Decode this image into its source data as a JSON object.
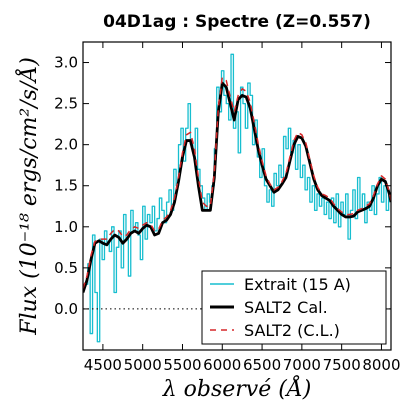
{
  "chart_data": {
    "type": "line",
    "title": "04D1ag : Spectre (Z=0.557)",
    "xlabel": "λ observé (Å)",
    "ylabel": "Flux (10⁻¹⁸ ergs/cm²/s/Å)",
    "xlim": [
      4250,
      8120
    ],
    "ylim": [
      -0.5,
      3.25
    ],
    "xticks": [
      4500,
      5000,
      5500,
      6000,
      6500,
      7000,
      7500,
      8000
    ],
    "xtick_labels": [
      "4500",
      "5000",
      "5500",
      "6000",
      "6500",
      "7000",
      "7500",
      "8000"
    ],
    "yticks": [
      0.0,
      0.5,
      1.0,
      1.5,
      2.0,
      2.5,
      3.0
    ],
    "ytick_labels": [
      "0.0",
      "0.5",
      "1.0",
      "1.5",
      "2.0",
      "2.5",
      "3.0"
    ],
    "zero_line": true,
    "grid": false,
    "legend_position": "lower-right",
    "series": [
      {
        "name": "Extrait (15 A)",
        "style": "step",
        "color": "#17becf",
        "x": [
          4280,
          4310,
          4340,
          4370,
          4400,
          4430,
          4460,
          4490,
          4520,
          4550,
          4580,
          4610,
          4640,
          4670,
          4700,
          4730,
          4760,
          4790,
          4820,
          4850,
          4880,
          4910,
          4940,
          4970,
          5000,
          5030,
          5060,
          5090,
          5120,
          5150,
          5180,
          5210,
          5240,
          5270,
          5300,
          5330,
          5360,
          5390,
          5420,
          5450,
          5480,
          5510,
          5540,
          5570,
          5600,
          5630,
          5660,
          5690,
          5720,
          5750,
          5780,
          5810,
          5840,
          5870,
          5900,
          5930,
          5960,
          5990,
          6020,
          6050,
          6080,
          6110,
          6140,
          6170,
          6200,
          6230,
          6260,
          6290,
          6320,
          6350,
          6380,
          6410,
          6440,
          6470,
          6500,
          6530,
          6560,
          6590,
          6620,
          6650,
          6680,
          6710,
          6740,
          6770,
          6800,
          6830,
          6860,
          6890,
          6920,
          6950,
          6980,
          7010,
          7040,
          7070,
          7100,
          7130,
          7160,
          7190,
          7220,
          7250,
          7280,
          7310,
          7340,
          7370,
          7400,
          7430,
          7460,
          7490,
          7520,
          7550,
          7580,
          7610,
          7640,
          7670,
          7700,
          7730,
          7760,
          7790,
          7820,
          7850,
          7880,
          7910,
          7940,
          7970,
          8000,
          8030,
          8060,
          8090
        ],
        "y": [
          0.3,
          0.55,
          -0.3,
          0.9,
          0.2,
          -0.4,
          0.85,
          0.6,
          0.95,
          0.8,
          0.7,
          1.0,
          0.2,
          0.75,
          0.95,
          0.5,
          1.15,
          0.85,
          0.4,
          1.2,
          0.95,
          1.05,
          0.9,
          0.6,
          1.25,
          0.85,
          1.15,
          1.05,
          1.25,
          0.95,
          1.1,
          1.35,
          1.2,
          1.05,
          1.3,
          1.45,
          1.2,
          1.7,
          1.5,
          2.0,
          2.2,
          1.8,
          2.2,
          2.5,
          2.0,
          1.9,
          2.2,
          1.7,
          1.5,
          1.35,
          1.2,
          1.4,
          1.3,
          1.5,
          1.95,
          2.7,
          2.4,
          2.9,
          2.6,
          2.5,
          2.3,
          3.1,
          2.2,
          2.4,
          1.9,
          2.7,
          2.5,
          2.2,
          2.75,
          2.6,
          2.0,
          2.3,
          1.85,
          1.6,
          1.95,
          1.5,
          1.3,
          1.45,
          1.25,
          1.65,
          1.5,
          1.75,
          1.6,
          2.1,
          1.95,
          2.2,
          1.9,
          2.05,
          1.7,
          2.0,
          1.6,
          1.75,
          1.45,
          1.6,
          1.3,
          1.5,
          1.2,
          1.4,
          1.25,
          1.35,
          1.15,
          1.3,
          1.1,
          1.35,
          1.05,
          1.4,
          1.0,
          1.3,
          1.15,
          1.4,
          0.85,
          1.2,
          1.45,
          1.1,
          1.6,
          1.2,
          1.4,
          1.05,
          1.3,
          1.2,
          1.5,
          1.15,
          1.4,
          1.6,
          1.3,
          1.5,
          1.2,
          1.45
        ]
      },
      {
        "name": "SALT2 Cal.",
        "style": "line",
        "color": "#000000",
        "x": [
          4250,
          4300,
          4350,
          4400,
          4450,
          4500,
          4550,
          4600,
          4650,
          4700,
          4750,
          4800,
          4850,
          4900,
          4950,
          5000,
          5050,
          5100,
          5150,
          5200,
          5250,
          5300,
          5350,
          5400,
          5450,
          5500,
          5550,
          5600,
          5650,
          5700,
          5750,
          5800,
          5850,
          5900,
          5950,
          6000,
          6050,
          6100,
          6150,
          6200,
          6250,
          6300,
          6350,
          6400,
          6450,
          6500,
          6550,
          6600,
          6650,
          6700,
          6750,
          6800,
          6850,
          6900,
          6950,
          7000,
          7050,
          7100,
          7150,
          7200,
          7250,
          7300,
          7350,
          7400,
          7450,
          7500,
          7550,
          7600,
          7650,
          7700,
          7750,
          7800,
          7850,
          7900,
          7950,
          8000,
          8050,
          8100,
          8120
        ],
        "y": [
          0.2,
          0.35,
          0.6,
          0.8,
          0.83,
          0.8,
          0.78,
          0.85,
          0.9,
          0.87,
          0.8,
          0.85,
          0.92,
          0.95,
          0.92,
          0.98,
          1.02,
          1.0,
          0.9,
          0.92,
          1.05,
          1.08,
          1.15,
          1.3,
          1.55,
          1.85,
          2.05,
          2.05,
          1.85,
          1.5,
          1.2,
          1.2,
          1.2,
          1.6,
          2.4,
          2.75,
          2.7,
          2.5,
          2.3,
          2.55,
          2.6,
          2.58,
          2.45,
          2.2,
          1.95,
          1.75,
          1.58,
          1.5,
          1.42,
          1.45,
          1.52,
          1.6,
          1.8,
          2.0,
          2.1,
          2.08,
          1.98,
          1.78,
          1.58,
          1.45,
          1.38,
          1.35,
          1.32,
          1.25,
          1.2,
          1.15,
          1.12,
          1.12,
          1.13,
          1.18,
          1.2,
          1.22,
          1.25,
          1.35,
          1.5,
          1.58,
          1.55,
          1.4,
          1.3
        ]
      },
      {
        "name": "SALT2 (C.L.)",
        "style": "dashed",
        "color": "#d62728",
        "x": [
          4250,
          4300,
          4350,
          4400,
          4450,
          4500,
          4550,
          4600,
          4650,
          4700,
          4750,
          4800,
          4850,
          4900,
          4950,
          5000,
          5050,
          5100,
          5150,
          5200,
          5250,
          5300,
          5350,
          5400,
          5450,
          5500,
          5550,
          5600,
          5650,
          5700,
          5750,
          5800,
          5850,
          5900,
          5950,
          6000,
          6050,
          6100,
          6150,
          6200,
          6250,
          6300,
          6350,
          6400,
          6450,
          6500,
          6550,
          6600,
          6650,
          6700,
          6750,
          6800,
          6850,
          6900,
          6950,
          7000,
          7050,
          7100,
          7150,
          7200,
          7250,
          7300,
          7350,
          7400,
          7450,
          7500,
          7550,
          7600,
          7650,
          7700,
          7750,
          7800,
          7850,
          7900,
          7950,
          8000,
          8050,
          8100,
          8120
        ],
        "y": [
          0.25,
          0.4,
          0.65,
          0.82,
          0.85,
          0.85,
          0.85,
          0.92,
          0.97,
          0.95,
          0.88,
          0.9,
          0.97,
          1.0,
          0.98,
          1.02,
          1.05,
          1.03,
          0.95,
          0.97,
          1.08,
          1.12,
          1.2,
          1.35,
          1.6,
          1.9,
          2.12,
          2.15,
          1.95,
          1.6,
          1.3,
          1.25,
          1.25,
          1.65,
          2.45,
          2.82,
          2.78,
          2.58,
          2.4,
          2.6,
          2.68,
          2.65,
          2.52,
          2.28,
          2.02,
          1.8,
          1.62,
          1.52,
          1.45,
          1.48,
          1.55,
          1.65,
          1.85,
          2.05,
          2.15,
          2.12,
          2.02,
          1.82,
          1.62,
          1.48,
          1.4,
          1.38,
          1.35,
          1.28,
          1.22,
          1.18,
          1.15,
          1.15,
          1.16,
          1.2,
          1.22,
          1.25,
          1.28,
          1.38,
          1.52,
          1.62,
          1.58,
          1.42,
          1.32
        ]
      }
    ]
  }
}
